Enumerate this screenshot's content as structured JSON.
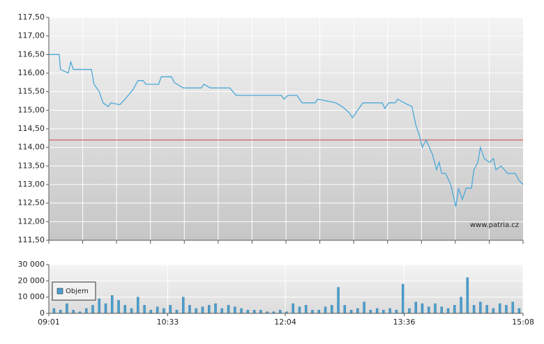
{
  "chart_data": [
    {
      "type": "line",
      "annotation": "www.patria.cz",
      "color": "#4aa8d8",
      "x": [
        "09:01",
        "09:09",
        "09:10",
        "09:16",
        "09:18",
        "09:20",
        "09:34",
        "09:36",
        "09:40",
        "09:43",
        "09:47",
        "09:49",
        "09:56",
        "10:00",
        "10:06",
        "10:10",
        "10:14",
        "10:16",
        "10:26",
        "10:28",
        "10:36",
        "10:38",
        "10:45",
        "10:59",
        "11:01",
        "11:06",
        "11:21",
        "11:26",
        "12:01",
        "12:03",
        "12:06",
        "12:13",
        "12:17",
        "12:27",
        "12:29",
        "12:43",
        "12:48",
        "12:53",
        "12:56",
        "12:59",
        "13:04",
        "13:19",
        "13:21",
        "13:24",
        "13:29",
        "13:31",
        "13:36",
        "13:42",
        "13:45",
        "13:48",
        "13:50",
        "13:53",
        "13:58",
        "14:01",
        "14:03",
        "14:05",
        "14:08",
        "14:12",
        "14:14",
        "14:16",
        "14:18",
        "14:21",
        "14:24",
        "14:28",
        "14:30",
        "14:33",
        "14:35",
        "14:38",
        "14:42",
        "14:45",
        "14:47",
        "14:51",
        "14:56",
        "15:02",
        "15:05",
        "15:08"
      ],
      "values": [
        116.5,
        116.5,
        116.1,
        116.0,
        116.3,
        116.1,
        116.1,
        115.7,
        115.5,
        115.2,
        115.1,
        115.2,
        115.15,
        115.3,
        115.55,
        115.8,
        115.8,
        115.7,
        115.7,
        115.9,
        115.9,
        115.75,
        115.6,
        115.6,
        115.7,
        115.6,
        115.6,
        115.4,
        115.4,
        115.3,
        115.4,
        115.4,
        115.2,
        115.2,
        115.3,
        115.2,
        115.1,
        114.95,
        114.8,
        114.95,
        115.2,
        115.2,
        115.05,
        115.2,
        115.2,
        115.3,
        115.2,
        115.1,
        114.6,
        114.3,
        114.0,
        114.2,
        113.8,
        113.4,
        113.6,
        113.3,
        113.3,
        113.0,
        112.7,
        112.4,
        112.9,
        112.6,
        112.9,
        112.9,
        113.4,
        113.6,
        114.0,
        113.7,
        113.6,
        113.7,
        113.4,
        113.5,
        113.3,
        113.3,
        113.1,
        113.0
      ],
      "xlim": [
        "09:01",
        "15:08"
      ],
      "ylim": [
        111.5,
        117.5
      ],
      "yticks": [
        {
          "value": 111.5,
          "label": "111,50"
        },
        {
          "value": 112,
          "label": "112,00"
        },
        {
          "value": 112.5,
          "label": "112,50"
        },
        {
          "value": 113,
          "label": "113,00"
        },
        {
          "value": 113.5,
          "label": "113,50"
        },
        {
          "value": 114,
          "label": "114,00"
        },
        {
          "value": 114.5,
          "label": "114,50"
        },
        {
          "value": 115,
          "label": "115,00"
        },
        {
          "value": 115.5,
          "label": "115,50"
        },
        {
          "value": 116,
          "label": "116,00"
        },
        {
          "value": 116.5,
          "label": "116,50"
        },
        {
          "value": 117,
          "label": "117,00"
        },
        {
          "value": 117.5,
          "label": "117,50"
        }
      ],
      "reference_line": {
        "value": 114.2,
        "color": "#d04040"
      },
      "grid": true
    },
    {
      "type": "bar",
      "legend": "top-left",
      "x": [
        "09:05",
        "09:10",
        "09:15",
        "09:20",
        "09:25",
        "09:30",
        "09:35",
        "09:40",
        "09:45",
        "09:50",
        "09:55",
        "10:00",
        "10:05",
        "10:10",
        "10:15",
        "10:20",
        "10:25",
        "10:30",
        "10:35",
        "10:40",
        "10:45",
        "10:50",
        "10:55",
        "11:00",
        "11:05",
        "11:10",
        "11:15",
        "11:20",
        "11:25",
        "11:30",
        "11:35",
        "11:40",
        "11:45",
        "11:50",
        "11:55",
        "12:00",
        "12:05",
        "12:10",
        "12:15",
        "12:20",
        "12:25",
        "12:30",
        "12:35",
        "12:40",
        "12:45",
        "12:50",
        "12:55",
        "13:00",
        "13:05",
        "13:10",
        "13:15",
        "13:20",
        "13:25",
        "13:30",
        "13:35",
        "13:40",
        "13:45",
        "13:50",
        "13:55",
        "14:00",
        "14:05",
        "14:10",
        "14:15",
        "14:20",
        "14:25",
        "14:30",
        "14:35",
        "14:40",
        "14:45",
        "14:50",
        "14:55",
        "15:00",
        "15:05"
      ],
      "series": [
        {
          "name": "Objem",
          "color": "#4a9fd0",
          "values": [
            3000,
            2000,
            6000,
            2000,
            1000,
            3000,
            5000,
            9000,
            6000,
            11000,
            8000,
            5000,
            3000,
            10000,
            5000,
            2000,
            4000,
            3000,
            5000,
            2000,
            10000,
            5000,
            3000,
            4000,
            5000,
            6000,
            3000,
            5000,
            4000,
            3000,
            2000,
            2000,
            2000,
            1000,
            1000,
            2000,
            1000,
            6000,
            4000,
            5000,
            2000,
            2000,
            4000,
            5000,
            16000,
            5000,
            2000,
            3000,
            7000,
            2000,
            3000,
            2000,
            3000,
            2000,
            18000,
            3000,
            7000,
            6000,
            4000,
            6000,
            4000,
            3000,
            5000,
            10000,
            22000,
            5000,
            7000,
            5000,
            3000,
            6000,
            5000,
            7000,
            3000
          ]
        }
      ],
      "xlim": [
        "09:01",
        "15:08"
      ],
      "xticks": [
        "09:01",
        "10:33",
        "12:04",
        "13:36",
        "15:08"
      ],
      "ylim": [
        0,
        30000
      ],
      "yticks": [
        0,
        {
          "value": 10000,
          "label": "10 000"
        },
        {
          "value": 20000,
          "label": "20 000"
        },
        {
          "value": 30000,
          "label": "30 000"
        }
      ],
      "grid": true
    }
  ]
}
